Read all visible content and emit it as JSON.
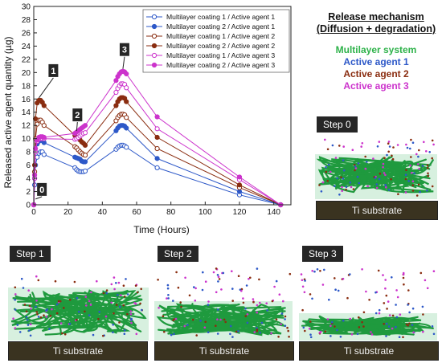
{
  "mechanism": {
    "title": "Release mechanism",
    "subtitle": "(Diffusion + degradation)",
    "items": [
      {
        "label": "Multilayer system",
        "color": "#2eb24a"
      },
      {
        "label": "Active agent 1",
        "color": "#2d58c8"
      },
      {
        "label": "Active agent 2",
        "color": "#8a2d10"
      },
      {
        "label": "Active agent 3",
        "color": "#cc33cc"
      }
    ]
  },
  "steps": {
    "step0": "Step 0",
    "step1": "Step 1",
    "step2": "Step 2",
    "step3": "Step 3",
    "substrate": "Ti substrate"
  },
  "chart_data": {
    "type": "line",
    "xlabel": "Time (Hours)",
    "ylabel": "Released active agent quantity (µg)",
    "xlim": [
      0,
      150
    ],
    "ylim": [
      0,
      30
    ],
    "xticks": [
      0,
      20,
      40,
      60,
      80,
      100,
      120,
      140
    ],
    "yticks": [
      0,
      2,
      4,
      6,
      8,
      10,
      12,
      14,
      16,
      18,
      20,
      22,
      24,
      26,
      28,
      30
    ],
    "x": [
      0,
      0.5,
      1,
      2,
      3,
      4,
      5,
      6,
      24,
      25,
      26,
      27,
      28,
      29,
      30,
      48,
      49,
      50,
      51,
      52,
      53,
      54,
      72,
      120,
      144
    ],
    "series": [
      {
        "name": "Multilayer coating 1 / Active agent 1",
        "color": "#2d58c8",
        "filled": false,
        "values": [
          0,
          3,
          6,
          7.2,
          7.8,
          8.0,
          8.0,
          7.6,
          5.6,
          5.3,
          5.1,
          5.0,
          5.0,
          5.0,
          5.1,
          8.4,
          8.7,
          8.9,
          9.0,
          9.0,
          8.9,
          8.7,
          5.6,
          1.5,
          0
        ]
      },
      {
        "name": "Multilayer coating 2 / Active agent 1",
        "color": "#2d58c8",
        "filled": true,
        "values": [
          0,
          4,
          8,
          9.2,
          9.6,
          9.8,
          9.7,
          9.4,
          7.2,
          7.1,
          7.0,
          6.9,
          6.6,
          6.5,
          6.5,
          11.2,
          11.6,
          11.9,
          12.0,
          12.0,
          11.9,
          11.6,
          7.0,
          2.0,
          0
        ]
      },
      {
        "name": "Multilayer coating 1 / Active agent 2",
        "color": "#8a2d10",
        "filled": false,
        "values": [
          0,
          5,
          10,
          12.2,
          12.8,
          12.8,
          12.5,
          12.0,
          8.8,
          8.6,
          8.3,
          8.0,
          7.8,
          7.6,
          7.5,
          12.7,
          13.2,
          13.5,
          13.7,
          13.7,
          13.6,
          13.2,
          8.5,
          2.6,
          0
        ]
      },
      {
        "name": "Multilayer coating 2 / Active agent 2",
        "color": "#8a2d10",
        "filled": true,
        "values": [
          0,
          6,
          13,
          15.4,
          15.8,
          15.8,
          15.5,
          15.0,
          10.5,
          10.2,
          10.0,
          9.8,
          9.5,
          9.3,
          9.0,
          15.0,
          15.6,
          16.0,
          16.2,
          16.2,
          16.1,
          15.6,
          10.2,
          3.0,
          0
        ]
      },
      {
        "name": "Multilayer coating 1 / Active agent 3",
        "color": "#cc33cc",
        "filled": false,
        "values": [
          0,
          4,
          8,
          9.6,
          10.0,
          10.0,
          10.0,
          10.0,
          9.9,
          10.0,
          10.2,
          10.4,
          10.6,
          10.8,
          10.9,
          17.0,
          17.6,
          18.0,
          18.3,
          18.3,
          18.2,
          17.7,
          11.5,
          3.8,
          0
        ]
      },
      {
        "name": "Multilayer coating 2 / Active agent 3",
        "color": "#cc33cc",
        "filled": true,
        "values": [
          0,
          4.5,
          8.5,
          9.8,
          10.2,
          10.3,
          10.3,
          10.2,
          10.8,
          11.0,
          11.2,
          11.4,
          11.6,
          11.8,
          12.0,
          18.8,
          19.4,
          19.8,
          20.1,
          20.2,
          20.1,
          19.8,
          13.3,
          4.2,
          0
        ]
      }
    ],
    "annotations": [
      {
        "label": "0",
        "x": 1,
        "y": 0.5
      },
      {
        "label": "1",
        "x": 3,
        "y": 15.8
      },
      {
        "label": "2",
        "x": 25,
        "y": 10.8
      },
      {
        "label": "3",
        "x": 52,
        "y": 20.2
      }
    ],
    "legend_position": "top-right"
  }
}
